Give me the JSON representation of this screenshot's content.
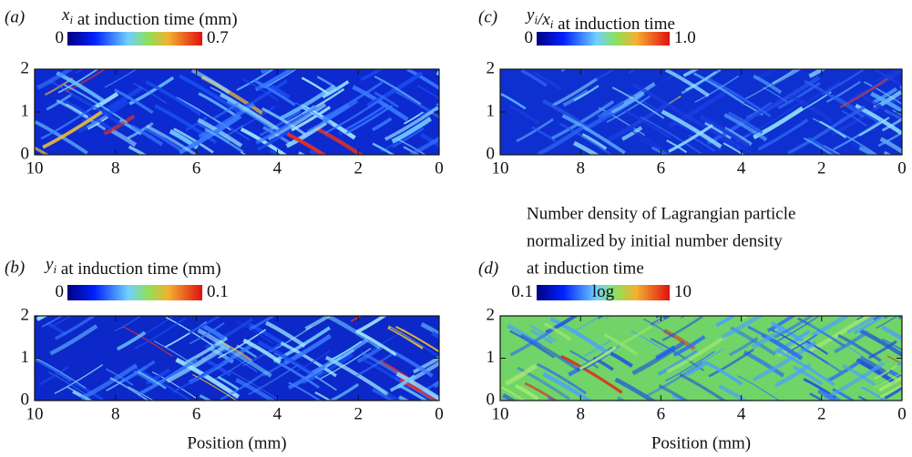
{
  "chart_data": [
    {
      "type": "heatmap",
      "label": "(a)",
      "title": [
        {
          "text": "x",
          "sub": "i"
        },
        {
          "text": " at induction time (mm)"
        }
      ],
      "colorbar": {
        "min_label": "0",
        "max_label": "0.7",
        "colormap": "jet"
      },
      "xlim": [
        10,
        0
      ],
      "xticks": [
        10,
        8,
        6,
        4,
        2,
        0
      ],
      "ylim": [
        0,
        2
      ],
      "yticks": [
        0,
        1,
        2
      ]
    },
    {
      "type": "heatmap",
      "label": "(b)",
      "title": [
        {
          "text": "y",
          "sub": "i"
        },
        {
          "text": " at induction time (mm)"
        }
      ],
      "colorbar": {
        "min_label": "0",
        "max_label": "0.1",
        "colormap": "jet"
      },
      "xlim": [
        10,
        0
      ],
      "xticks": [
        10,
        8,
        6,
        4,
        2,
        0
      ],
      "ylim": [
        0,
        2
      ],
      "yticks": [
        0,
        1,
        2
      ],
      "xlabel": "Position (mm)"
    },
    {
      "type": "heatmap",
      "label": "(c)",
      "title": [
        {
          "text": "y",
          "sub": "i"
        },
        {
          "text": "/x",
          "sub": "i"
        },
        {
          "text": " at induction time"
        }
      ],
      "colorbar": {
        "min_label": "0",
        "max_label": "1.0",
        "colormap": "jet"
      },
      "xlim": [
        10,
        0
      ],
      "xticks": [
        10,
        8,
        6,
        4,
        2,
        0
      ],
      "ylim": [
        0,
        2
      ],
      "yticks": [
        0,
        1,
        2
      ]
    },
    {
      "type": "heatmap",
      "label": "(d)",
      "title_lines": [
        "Number density of Lagrangian particle",
        "normalized by initial number density",
        "at induction time"
      ],
      "colorbar": {
        "min_label": "0.1",
        "max_label": "10",
        "scale_label": "log",
        "colormap": "jet"
      },
      "xlim": [
        10,
        0
      ],
      "xticks": [
        10,
        8,
        6,
        4,
        2,
        0
      ],
      "ylim": [
        0,
        2
      ],
      "yticks": [
        0,
        1,
        2
      ],
      "xlabel": "Position (mm)"
    }
  ]
}
